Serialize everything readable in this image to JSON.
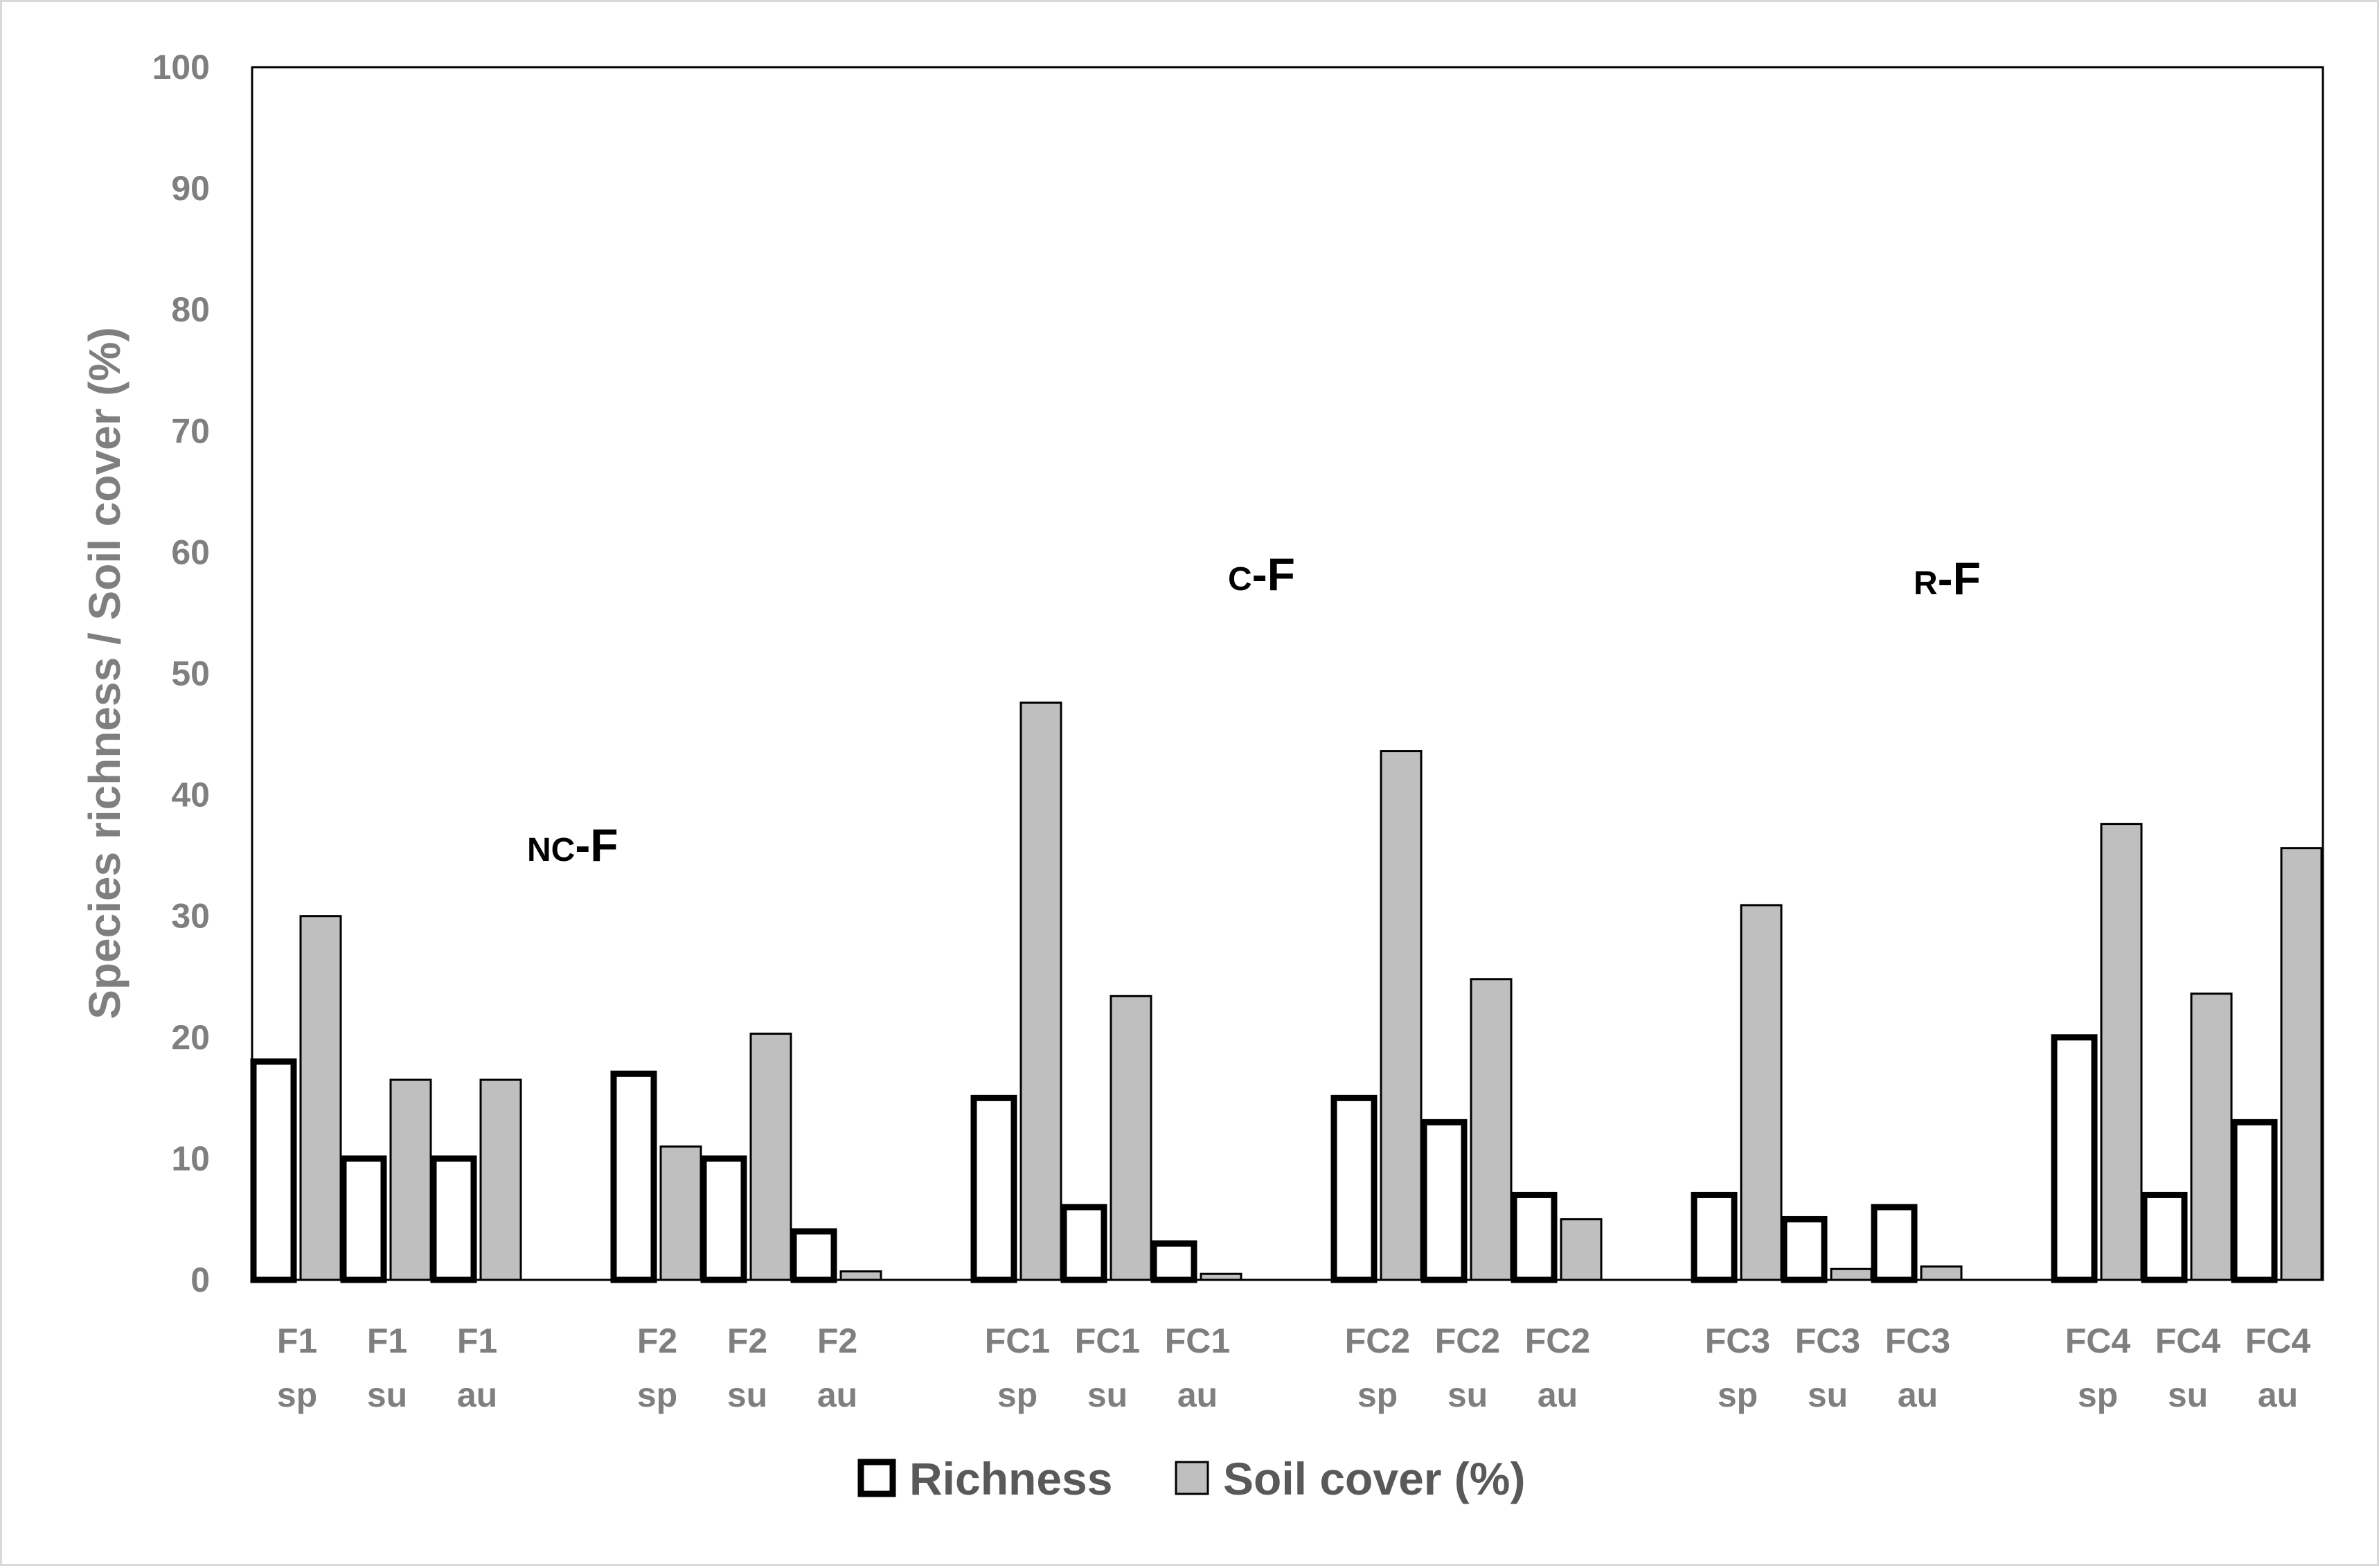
{
  "chart_data": {
    "type": "bar",
    "title": "",
    "xlabel": "",
    "ylabel": "Species richness / Soil cover (%)",
    "ylim": [
      0,
      100
    ],
    "yticks": [
      0,
      10,
      20,
      30,
      40,
      50,
      60,
      70,
      80,
      90,
      100
    ],
    "grid": false,
    "legend_position": "bottom",
    "categories": [
      [
        "F1",
        "sp"
      ],
      [
        "F1",
        "su"
      ],
      [
        "F1",
        "au"
      ],
      [
        "F2",
        "sp"
      ],
      [
        "F2",
        "su"
      ],
      [
        "F2",
        "au"
      ],
      [
        "FC1",
        "sp"
      ],
      [
        "FC1",
        "su"
      ],
      [
        "FC1",
        "au"
      ],
      [
        "FC2",
        "sp"
      ],
      [
        "FC2",
        "su"
      ],
      [
        "FC2",
        "au"
      ],
      [
        "FC3",
        "sp"
      ],
      [
        "FC3",
        "su"
      ],
      [
        "FC3",
        "au"
      ],
      [
        "FC4",
        "sp"
      ],
      [
        "FC4",
        "su"
      ],
      [
        "FC4",
        "au"
      ]
    ],
    "series": [
      {
        "name": "Richness",
        "style": "outline",
        "fill": "#ffffff",
        "stroke": "#000000",
        "values": [
          18,
          10,
          10,
          17,
          10,
          4,
          15,
          6,
          3,
          15,
          13,
          7,
          7,
          5,
          6,
          20,
          7,
          13
        ]
      },
      {
        "name": "Soil cover (%)",
        "style": "filled",
        "fill": "#bfbfbf",
        "stroke": "#000000",
        "values": [
          30,
          16.5,
          16.5,
          11,
          20.3,
          0.7,
          47.6,
          23.4,
          0.5,
          43.6,
          24.8,
          5,
          30.9,
          0.9,
          1.1,
          37.6,
          23.6,
          35.6
        ]
      }
    ],
    "annotations": [
      {
        "prefix": "NC",
        "suffix": "-F"
      },
      {
        "prefix": "C",
        "suffix": "-F"
      },
      {
        "prefix": "R",
        "suffix": "-F"
      }
    ]
  }
}
